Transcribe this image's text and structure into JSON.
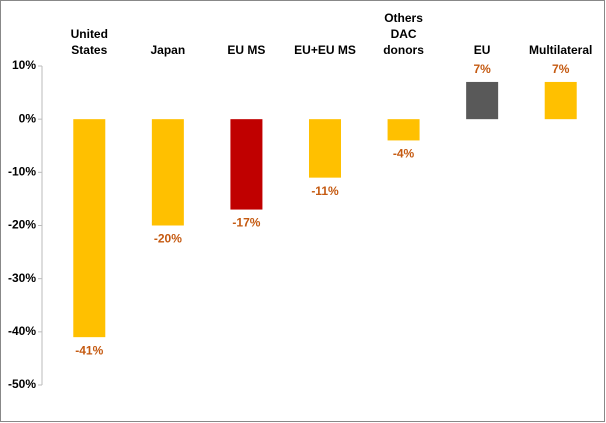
{
  "chart_data": {
    "type": "bar",
    "categories": [
      "United States",
      "Japan",
      "EU MS",
      "EU+EU MS",
      "Others DAC donors",
      "EU",
      "Multilateral"
    ],
    "values": [
      -41,
      -20,
      -17,
      -11,
      -4,
      7,
      7
    ],
    "value_labels": [
      "-41%",
      "-20%",
      "-17%",
      "-11%",
      "-4%",
      "7%",
      "7%"
    ],
    "colors": [
      "#ffc000",
      "#ffc000",
      "#c00000",
      "#ffc000",
      "#ffc000",
      "#595959",
      "#ffc000"
    ],
    "label_color": "#c55a11",
    "ylim": [
      -50,
      10
    ],
    "yticks": [
      {
        "value": -50,
        "label": "-50%"
      },
      {
        "value": -40,
        "label": "-40%"
      },
      {
        "value": -30,
        "label": "-30%"
      },
      {
        "value": -20,
        "label": "-20%"
      },
      {
        "value": -10,
        "label": "-10%"
      },
      {
        "value": 0,
        "label": "0%"
      },
      {
        "value": 10,
        "label": "10%"
      }
    ]
  }
}
